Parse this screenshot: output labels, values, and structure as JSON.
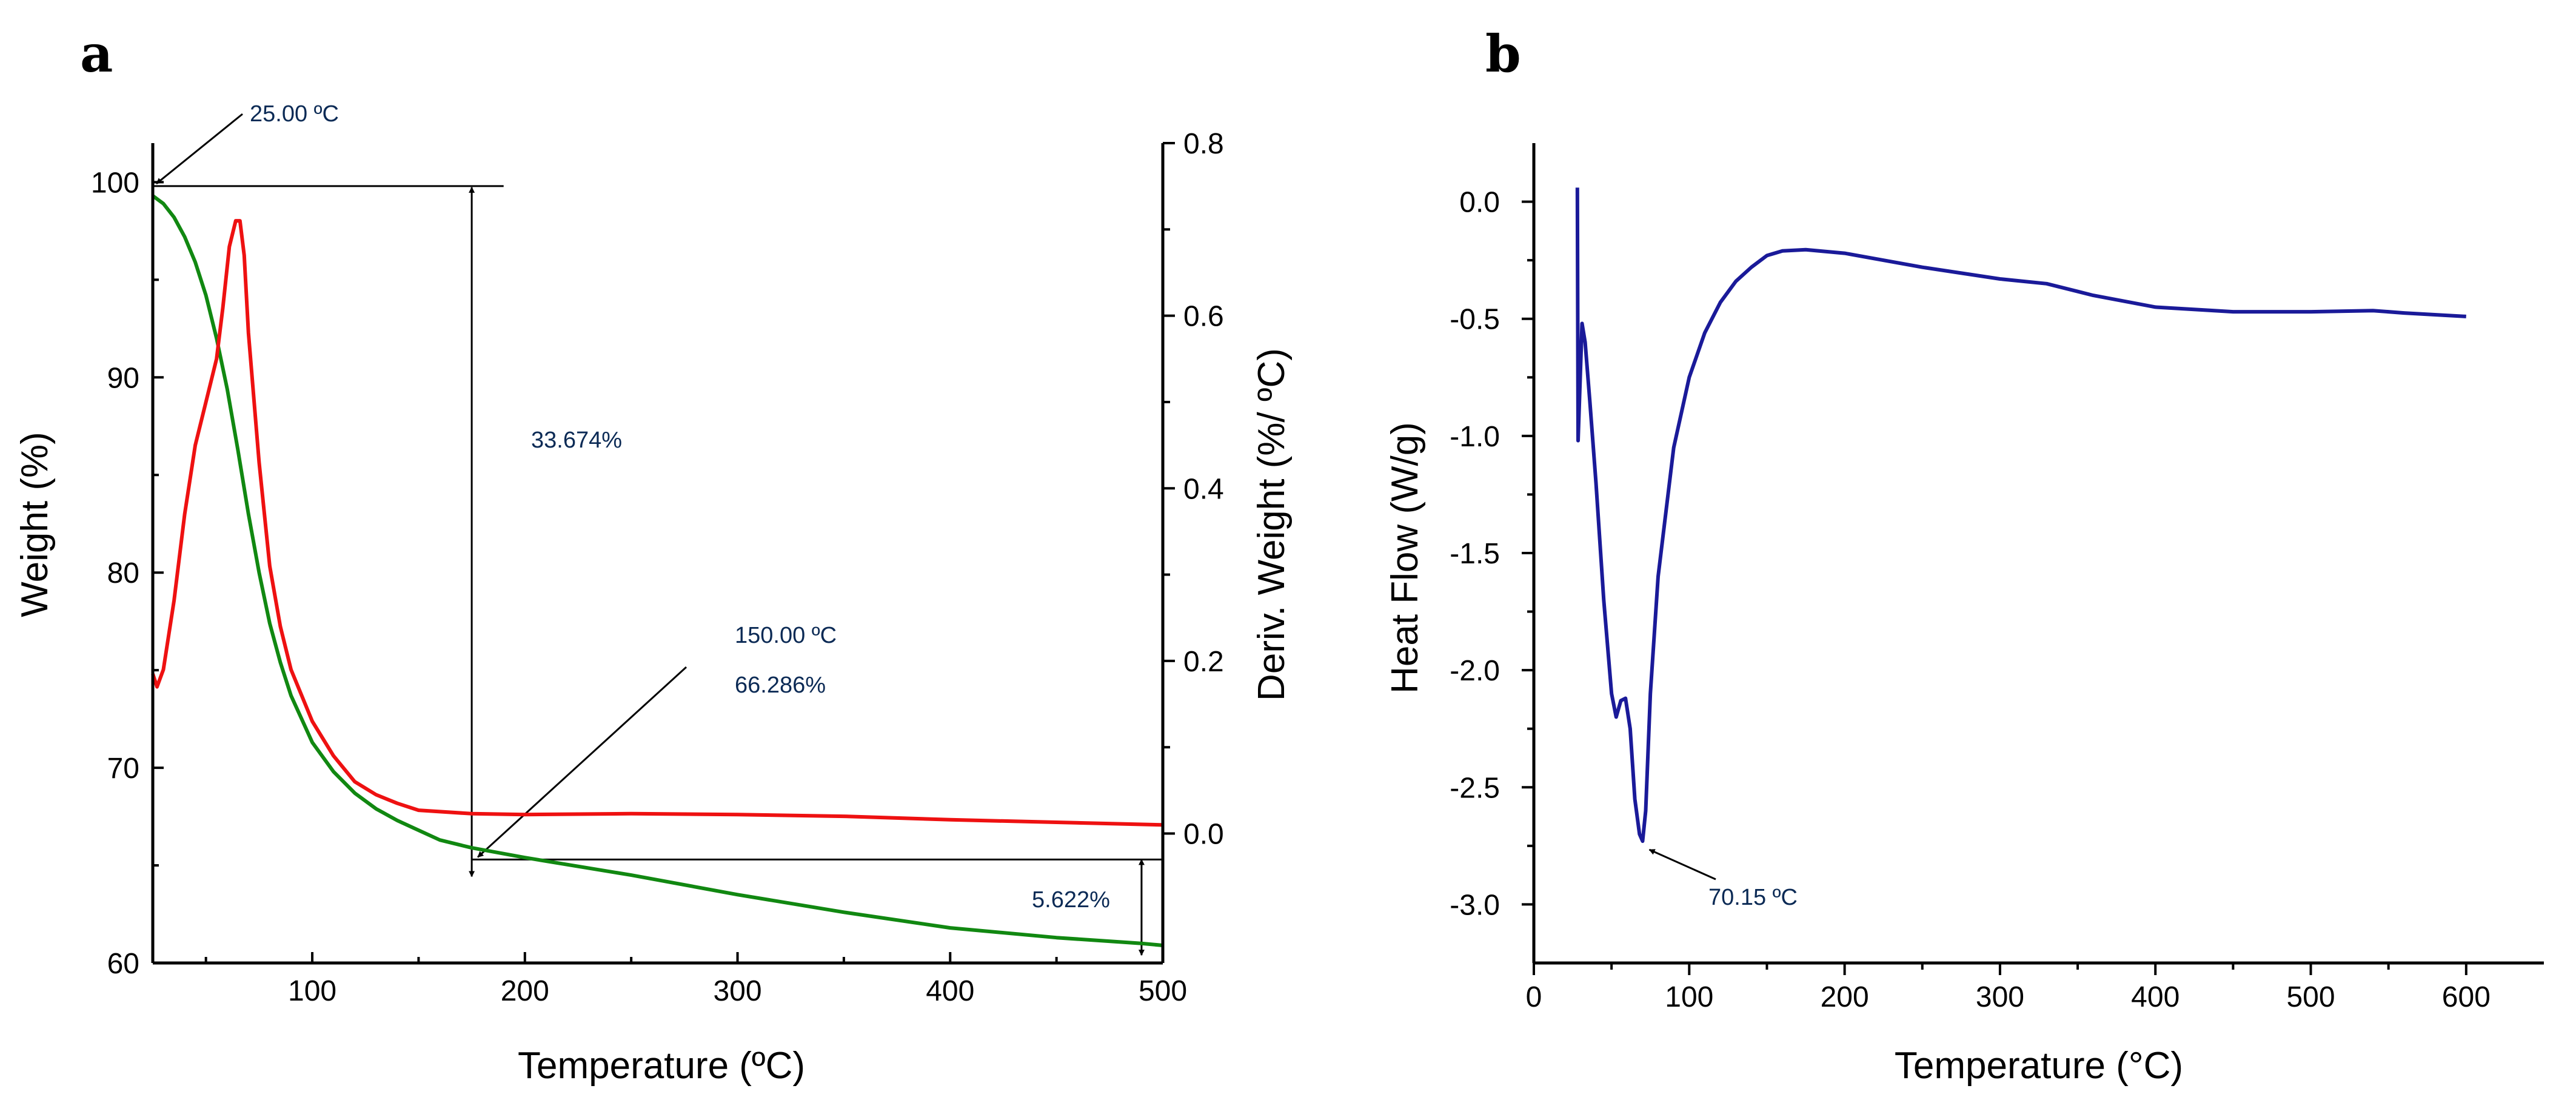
{
  "figure": {
    "panel_a_label": "a",
    "panel_b_label": "b"
  },
  "chart_data": [
    {
      "type": "line",
      "panel": "a",
      "title": "",
      "xlabel": "Temperature (ºC)",
      "ylabel": "Weight (%)",
      "y2label": "Deriv. Weight (%/ ºC)",
      "xlim": [
        25,
        500
      ],
      "ylim": [
        60,
        102
      ],
      "y2lim": [
        -0.15,
        0.8
      ],
      "xticks": [
        100,
        200,
        300,
        400,
        500
      ],
      "yticks": [
        60,
        70,
        80,
        90,
        100
      ],
      "y2ticks": [
        0.0,
        0.2,
        0.4,
        0.6,
        0.8
      ],
      "xtick_labels": [
        "100",
        "200",
        "300",
        "400",
        "500"
      ],
      "ytick_labels": [
        "60",
        "70",
        "80",
        "90",
        "100"
      ],
      "y2tick_labels": [
        "0.0",
        "0.2",
        "0.4",
        "0.6",
        "0.8"
      ],
      "series": [
        {
          "name": "Weight",
          "axis": "left",
          "color": "#118811",
          "points": [
            [
              25,
              99.3
            ],
            [
              30,
              98.9
            ],
            [
              35,
              98.2
            ],
            [
              40,
              97.2
            ],
            [
              45,
              95.9
            ],
            [
              50,
              94.2
            ],
            [
              55,
              92.0
            ],
            [
              60,
              89.4
            ],
            [
              65,
              86.3
            ],
            [
              70,
              83.0
            ],
            [
              75,
              80.0
            ],
            [
              80,
              77.4
            ],
            [
              85,
              75.4
            ],
            [
              90,
              73.7
            ],
            [
              100,
              71.3
            ],
            [
              110,
              69.8
            ],
            [
              120,
              68.7
            ],
            [
              130,
              67.9
            ],
            [
              140,
              67.3
            ],
            [
              150,
              66.8
            ],
            [
              160,
              66.3
            ],
            [
              175,
              65.9
            ],
            [
              200,
              65.4
            ],
            [
              250,
              64.5
            ],
            [
              300,
              63.5
            ],
            [
              350,
              62.6
            ],
            [
              400,
              61.8
            ],
            [
              450,
              61.3
            ],
            [
              490,
              61.0
            ],
            [
              500,
              60.9
            ]
          ]
        },
        {
          "name": "Deriv. Weight",
          "axis": "right",
          "color": "#ee1111",
          "points": [
            [
              25,
              0.185
            ],
            [
              27,
              0.17
            ],
            [
              30,
              0.19
            ],
            [
              35,
              0.27
            ],
            [
              40,
              0.37
            ],
            [
              45,
              0.45
            ],
            [
              50,
              0.5
            ],
            [
              55,
              0.55
            ],
            [
              58,
              0.61
            ],
            [
              61,
              0.68
            ],
            [
              64,
              0.71
            ],
            [
              66,
              0.71
            ],
            [
              68,
              0.67
            ],
            [
              70,
              0.58
            ],
            [
              75,
              0.43
            ],
            [
              80,
              0.31
            ],
            [
              85,
              0.24
            ],
            [
              90,
              0.19
            ],
            [
              100,
              0.13
            ],
            [
              110,
              0.09
            ],
            [
              120,
              0.06
            ],
            [
              130,
              0.045
            ],
            [
              140,
              0.035
            ],
            [
              150,
              0.027
            ],
            [
              175,
              0.023
            ],
            [
              200,
              0.022
            ],
            [
              250,
              0.023
            ],
            [
              300,
              0.022
            ],
            [
              350,
              0.02
            ],
            [
              400,
              0.016
            ],
            [
              450,
              0.013
            ],
            [
              500,
              0.01
            ]
          ]
        }
      ],
      "annotations": {
        "start_temp": "25.00 ºC",
        "loss_main": "33.674%",
        "mid_temp": "150.00 ºC",
        "mid_weight": "66.286%",
        "loss_tail": "5.622%"
      }
    },
    {
      "type": "line",
      "panel": "b",
      "title": "",
      "xlabel": "Temperature (°C)",
      "ylabel": "Heat Flow (W/g)",
      "xlim": [
        0,
        650
      ],
      "ylim": [
        -3.25,
        0.25
      ],
      "xticks": [
        0,
        100,
        200,
        300,
        400,
        500,
        600
      ],
      "yticks": [
        -3.0,
        -2.5,
        -2.0,
        -1.5,
        -1.0,
        -0.5,
        0.0
      ],
      "xtick_labels": [
        "0",
        "100",
        "200",
        "300",
        "400",
        "500",
        "600"
      ],
      "ytick_labels": [
        "-3.0",
        "-2.5",
        "-2.0",
        "-1.5",
        "-1.0",
        "-0.5",
        "0.0"
      ],
      "series": [
        {
          "name": "Heat Flow",
          "color": "#1a1a99",
          "points": [
            [
              28,
              0.06
            ],
            [
              28.5,
              -1.02
            ],
            [
              31,
              -0.52
            ],
            [
              33,
              -0.6
            ],
            [
              36,
              -0.85
            ],
            [
              40,
              -1.2
            ],
            [
              45,
              -1.7
            ],
            [
              50,
              -2.1
            ],
            [
              53,
              -2.2
            ],
            [
              56,
              -2.13
            ],
            [
              59,
              -2.12
            ],
            [
              62,
              -2.25
            ],
            [
              65,
              -2.55
            ],
            [
              68,
              -2.7
            ],
            [
              70,
              -2.73
            ],
            [
              72,
              -2.6
            ],
            [
              75,
              -2.1
            ],
            [
              80,
              -1.6
            ],
            [
              90,
              -1.05
            ],
            [
              100,
              -0.75
            ],
            [
              110,
              -0.56
            ],
            [
              120,
              -0.43
            ],
            [
              130,
              -0.34
            ],
            [
              140,
              -0.28
            ],
            [
              150,
              -0.23
            ],
            [
              160,
              -0.21
            ],
            [
              175,
              -0.205
            ],
            [
              200,
              -0.22
            ],
            [
              250,
              -0.28
            ],
            [
              300,
              -0.33
            ],
            [
              330,
              -0.35
            ],
            [
              360,
              -0.4
            ],
            [
              400,
              -0.45
            ],
            [
              450,
              -0.47
            ],
            [
              500,
              -0.47
            ],
            [
              540,
              -0.465
            ],
            [
              560,
              -0.475
            ],
            [
              600,
              -0.49
            ]
          ]
        }
      ],
      "annotations": {
        "peak_temp": "70.15 ºC"
      }
    }
  ]
}
